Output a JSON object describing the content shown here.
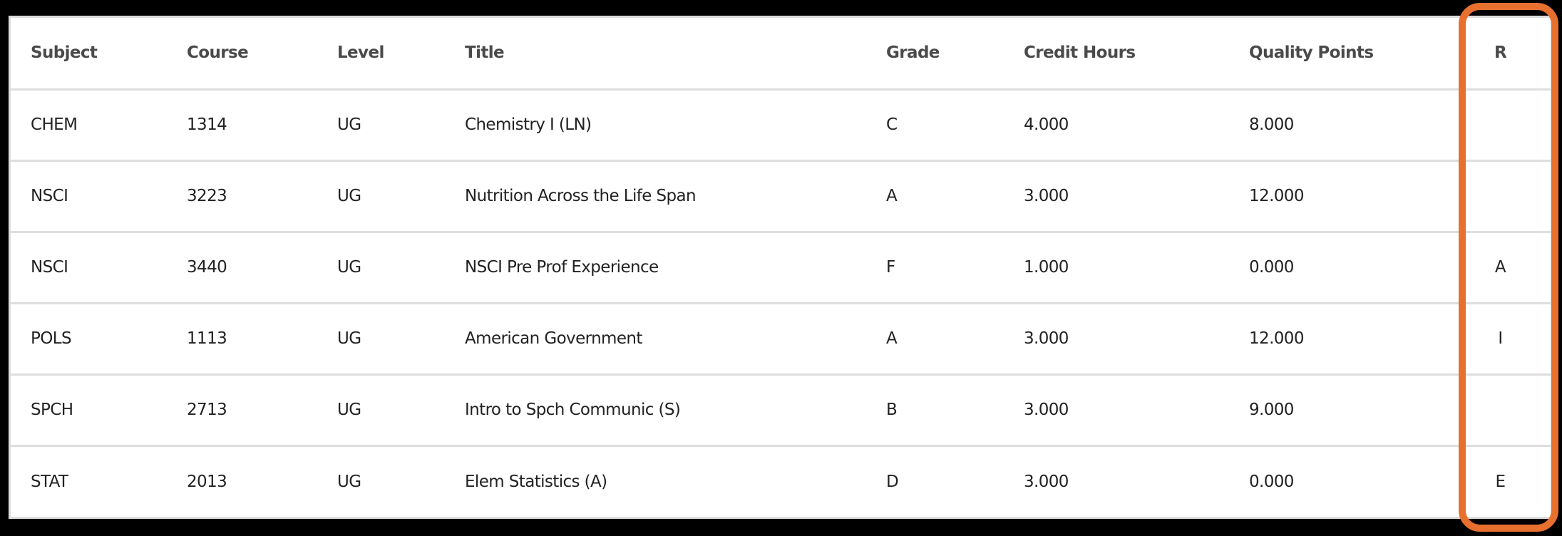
{
  "table": {
    "columns": [
      {
        "key": "subject",
        "label": "Subject"
      },
      {
        "key": "course",
        "label": "Course"
      },
      {
        "key": "level",
        "label": "Level"
      },
      {
        "key": "title",
        "label": "Title"
      },
      {
        "key": "grade",
        "label": "Grade"
      },
      {
        "key": "credit_hours",
        "label": "Credit Hours"
      },
      {
        "key": "quality_points",
        "label": "Quality Points"
      },
      {
        "key": "r",
        "label": "R"
      }
    ],
    "rows": [
      {
        "subject": "CHEM",
        "course": "1314",
        "level": "UG",
        "title": "Chemistry I (LN)",
        "grade": "C",
        "credit_hours": "4.000",
        "quality_points": "8.000",
        "r": ""
      },
      {
        "subject": "NSCI",
        "course": "3223",
        "level": "UG",
        "title": "Nutrition Across the Life Span",
        "grade": "A",
        "credit_hours": "3.000",
        "quality_points": "12.000",
        "r": ""
      },
      {
        "subject": "NSCI",
        "course": "3440",
        "level": "UG",
        "title": "NSCI Pre Prof Experience",
        "grade": "F",
        "credit_hours": "1.000",
        "quality_points": "0.000",
        "r": "A"
      },
      {
        "subject": "POLS",
        "course": "1113",
        "level": "UG",
        "title": "American Government",
        "grade": "A",
        "credit_hours": "3.000",
        "quality_points": "12.000",
        "r": "I"
      },
      {
        "subject": "SPCH",
        "course": "2713",
        "level": "UG",
        "title": "Intro to Spch Communic (S)",
        "grade": "B",
        "credit_hours": "3.000",
        "quality_points": "9.000",
        "r": ""
      },
      {
        "subject": "STAT",
        "course": "2013",
        "level": "UG",
        "title": "Elem Statistics (A)",
        "grade": "D",
        "credit_hours": "3.000",
        "quality_points": "0.000",
        "r": "E"
      }
    ]
  },
  "annotation": {
    "highlight_target": "R column",
    "color": "#E8702F"
  }
}
